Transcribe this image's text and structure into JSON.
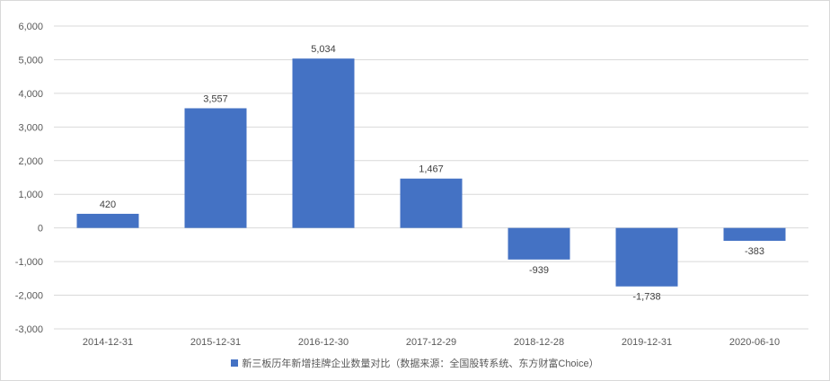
{
  "chart_data": {
    "type": "bar",
    "categories": [
      "2014-12-31",
      "2015-12-31",
      "2016-12-30",
      "2017-12-29",
      "2018-12-28",
      "2019-12-31",
      "2020-06-10"
    ],
    "series": [
      {
        "name": "新三板历年新增挂牌企业数量对比（数据来源：全国股转系统、东方财富Choice）",
        "values": [
          420,
          3557,
          5034,
          1467,
          -939,
          -1738,
          -383
        ],
        "labels": [
          "420",
          "3,557",
          "5,034",
          "1,467",
          "-939",
          "-1,738",
          "-383"
        ]
      }
    ],
    "ylim": [
      -3000,
      6000
    ],
    "yticks": [
      6000,
      5000,
      4000,
      3000,
      2000,
      1000,
      0,
      -1000,
      -2000,
      -3000
    ],
    "ytick_labels": [
      "6,000",
      "5,000",
      "4,000",
      "3,000",
      "2,000",
      "1,000",
      "0",
      "-1,000",
      "-2,000",
      "-3,000"
    ],
    "grid": true,
    "legend": "bottom",
    "colors": {
      "bar": "#4472c4",
      "grid": "#d9d9d9"
    }
  }
}
